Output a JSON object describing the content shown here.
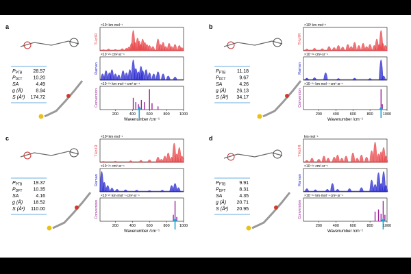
{
  "colors": {
    "thz": "#e8464a",
    "raman": "#2a2ad0",
    "conv": "#9b1f9b",
    "arrow": "#19a6d6",
    "rule": "#3a8fd0",
    "mol": "#6a6a6a"
  },
  "axis": {
    "xlabel": "Wavenumber /cm⁻¹",
    "xticks": [
      200,
      400,
      600,
      800,
      1000
    ],
    "xlim": [
      20,
      1000
    ]
  },
  "row_labels": {
    "thz": "THz/IR",
    "raman": "Raman",
    "conv": "Conversion"
  },
  "panels": [
    {
      "letter": "a",
      "units": {
        "thz": "×10¹ km·mol⁻¹",
        "raman": "×10⁻²⁹ cm²·sr⁻¹",
        "conv": "×10⁻²⁴ km·mol⁻¹·cm²·sr⁻¹"
      },
      "arrow_x": 480,
      "props": [
        {
          "key": "P",
          "sub": "PTB",
          "value": "28.57"
        },
        {
          "key": "P",
          "sub": "DFT",
          "value": "10.20"
        },
        {
          "key": "SA",
          "sub": "",
          "value": "4.49"
        },
        {
          "key": "g (Å)",
          "sub": "",
          "value": "8.94"
        },
        {
          "key": "S (Å²)",
          "sub": "",
          "value": "174.72"
        }
      ],
      "thz": [
        [
          60,
          0.05
        ],
        [
          120,
          0.08
        ],
        [
          200,
          0.06
        ],
        [
          280,
          0.1
        ],
        [
          330,
          0.12
        ],
        [
          360,
          0.18
        ],
        [
          390,
          0.35
        ],
        [
          410,
          0.95
        ],
        [
          430,
          0.4
        ],
        [
          460,
          0.6
        ],
        [
          480,
          0.45
        ],
        [
          500,
          0.3
        ],
        [
          520,
          0.55
        ],
        [
          545,
          0.4
        ],
        [
          570,
          0.3
        ],
        [
          600,
          0.25
        ],
        [
          640,
          0.2
        ],
        [
          700,
          0.55
        ],
        [
          730,
          0.3
        ],
        [
          760,
          0.4
        ],
        [
          790,
          0.2
        ],
        [
          830,
          0.35
        ],
        [
          860,
          0.2
        ],
        [
          900,
          0.3
        ],
        [
          950,
          0.25
        ],
        [
          980,
          0.15
        ]
      ],
      "raman": [
        [
          50,
          0.3
        ],
        [
          90,
          0.45
        ],
        [
          130,
          0.35
        ],
        [
          160,
          0.5
        ],
        [
          200,
          0.3
        ],
        [
          240,
          0.25
        ],
        [
          290,
          0.45
        ],
        [
          330,
          0.35
        ],
        [
          370,
          0.5
        ],
        [
          410,
          0.95
        ],
        [
          440,
          0.55
        ],
        [
          470,
          0.4
        ],
        [
          500,
          0.65
        ],
        [
          520,
          0.45
        ],
        [
          560,
          0.5
        ],
        [
          600,
          0.35
        ],
        [
          650,
          0.3
        ],
        [
          700,
          0.4
        ],
        [
          760,
          0.3
        ],
        [
          820,
          0.2
        ],
        [
          900,
          0.15
        ]
      ],
      "conv": [
        [
          410,
          0.55
        ],
        [
          440,
          0.35
        ],
        [
          470,
          0.25
        ],
        [
          505,
          0.45
        ],
        [
          540,
          0.35
        ],
        [
          600,
          0.95
        ],
        [
          630,
          0.3
        ],
        [
          700,
          0.15
        ]
      ]
    },
    {
      "letter": "b",
      "units": {
        "thz": "×10³ km·mol⁻¹",
        "raman": "×10⁻²⁹ cm²·sr⁻¹",
        "conv": "×10⁻²⁴ km·mol⁻¹·cm²·sr⁻¹"
      },
      "arrow_x": 930,
      "props": [
        {
          "key": "P",
          "sub": "PTB",
          "value": "11.18"
        },
        {
          "key": "P",
          "sub": "DFT",
          "value": "9.67"
        },
        {
          "key": "SA",
          "sub": "",
          "value": "4.26"
        },
        {
          "key": "g (Å)",
          "sub": "",
          "value": "26.13"
        },
        {
          "key": "S (Å²)",
          "sub": "",
          "value": "34.17"
        }
      ],
      "thz": [
        [
          60,
          0.08
        ],
        [
          150,
          0.12
        ],
        [
          240,
          0.1
        ],
        [
          320,
          0.2
        ],
        [
          380,
          0.15
        ],
        [
          430,
          0.25
        ],
        [
          480,
          0.18
        ],
        [
          540,
          0.3
        ],
        [
          580,
          0.2
        ],
        [
          620,
          0.4
        ],
        [
          670,
          0.25
        ],
        [
          720,
          0.35
        ],
        [
          760,
          0.2
        ],
        [
          800,
          0.3
        ],
        [
          850,
          0.25
        ],
        [
          880,
          0.55
        ],
        [
          910,
          0.3
        ],
        [
          930,
          0.95
        ],
        [
          950,
          0.35
        ],
        [
          980,
          0.25
        ]
      ],
      "raman": [
        [
          60,
          0.1
        ],
        [
          150,
          0.12
        ],
        [
          280,
          0.35
        ],
        [
          430,
          0.08
        ],
        [
          620,
          0.1
        ],
        [
          800,
          0.08
        ],
        [
          930,
          0.95
        ],
        [
          960,
          0.2
        ]
      ],
      "conv": [
        [
          930,
          0.95
        ],
        [
          945,
          0.25
        ]
      ]
    },
    {
      "letter": "c",
      "units": {
        "thz": "×10³ km·mol⁻¹",
        "raman": "×10⁻²⁹ cm²·sr⁻¹",
        "conv": "×10⁻²⁷ km·mol⁻¹·cm²·sr⁻¹"
      },
      "arrow_x": 900,
      "props": [
        {
          "key": "P",
          "sub": "PTB",
          "value": "19.37"
        },
        {
          "key": "P",
          "sub": "DFT",
          "value": "10.35"
        },
        {
          "key": "SA",
          "sub": "",
          "value": "4.16"
        },
        {
          "key": "g (Å)",
          "sub": "",
          "value": "18.52"
        },
        {
          "key": "S (Å²)",
          "sub": "",
          "value": "110.00"
        }
      ],
      "thz": [
        [
          60,
          0.05
        ],
        [
          200,
          0.06
        ],
        [
          380,
          0.08
        ],
        [
          500,
          0.1
        ],
        [
          600,
          0.12
        ],
        [
          700,
          0.25
        ],
        [
          740,
          0.15
        ],
        [
          780,
          0.3
        ],
        [
          820,
          0.45
        ],
        [
          860,
          0.25
        ],
        [
          890,
          0.9
        ],
        [
          920,
          0.4
        ],
        [
          950,
          0.7
        ],
        [
          980,
          0.3
        ]
      ],
      "raman": [
        [
          40,
          0.95
        ],
        [
          70,
          0.45
        ],
        [
          110,
          0.3
        ],
        [
          160,
          0.18
        ],
        [
          220,
          0.12
        ],
        [
          320,
          0.1
        ],
        [
          450,
          0.08
        ],
        [
          600,
          0.06
        ],
        [
          750,
          0.08
        ],
        [
          860,
          0.3
        ],
        [
          900,
          0.4
        ],
        [
          940,
          0.2
        ]
      ],
      "conv": [
        [
          880,
          0.3
        ],
        [
          900,
          0.95
        ],
        [
          920,
          0.2
        ]
      ]
    },
    {
      "letter": "d",
      "units": {
        "thz": "km·mol⁻¹",
        "raman": "×10⁻²⁹ cm²·sr⁻¹",
        "conv": "×10⁻²⁴ km·mol⁻¹·cm²·sr⁻¹"
      },
      "arrow_x": 955,
      "props": [
        {
          "key": "P",
          "sub": "PTB",
          "value": "9.91"
        },
        {
          "key": "P",
          "sub": "DFT",
          "value": "8.31"
        },
        {
          "key": "SA",
          "sub": "",
          "value": "4.35"
        },
        {
          "key": "g (Å)",
          "sub": "",
          "value": "20.71"
        },
        {
          "key": "S (Å²)",
          "sub": "",
          "value": "20.95"
        }
      ],
      "thz": [
        [
          60,
          0.1
        ],
        [
          120,
          0.2
        ],
        [
          200,
          0.15
        ],
        [
          260,
          0.3
        ],
        [
          310,
          0.2
        ],
        [
          380,
          0.25
        ],
        [
          420,
          0.35
        ],
        [
          470,
          0.2
        ],
        [
          520,
          0.3
        ],
        [
          600,
          0.45
        ],
        [
          650,
          0.2
        ],
        [
          700,
          0.35
        ],
        [
          760,
          0.25
        ],
        [
          820,
          0.55
        ],
        [
          860,
          0.95
        ],
        [
          900,
          0.4
        ],
        [
          930,
          0.5
        ],
        [
          960,
          0.7
        ],
        [
          985,
          0.3
        ]
      ],
      "raman": [
        [
          60,
          0.15
        ],
        [
          160,
          0.1
        ],
        [
          300,
          0.12
        ],
        [
          360,
          0.4
        ],
        [
          420,
          0.12
        ],
        [
          560,
          0.15
        ],
        [
          700,
          0.2
        ],
        [
          820,
          0.55
        ],
        [
          860,
          0.35
        ],
        [
          900,
          0.9
        ],
        [
          930,
          0.4
        ],
        [
          960,
          0.95
        ],
        [
          985,
          0.3
        ]
      ],
      "conv": [
        [
          860,
          0.45
        ],
        [
          900,
          0.55
        ],
        [
          930,
          0.35
        ],
        [
          955,
          0.95
        ],
        [
          975,
          0.3
        ]
      ]
    }
  ]
}
